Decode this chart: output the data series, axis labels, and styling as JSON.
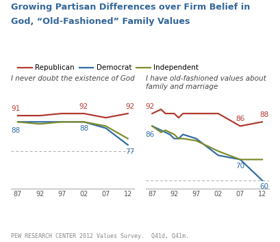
{
  "title_line1": "Growing Partisan Differences over Firm Belief in",
  "title_line2": "God, “Old-Fashioned” Family Values",
  "title_color": "#336699",
  "subtitle_left": "I never doubt the existence of God",
  "subtitle_right": "I have old-fashioned values about\nfamily and marriage",
  "x_labels": [
    "87",
    "92",
    "97",
    "02",
    "07",
    "12"
  ],
  "x_left": [
    0,
    1,
    2,
    3,
    4,
    5
  ],
  "x_right": [
    0,
    0.4,
    0.6,
    0.8,
    1,
    1.2,
    1.4,
    2,
    3,
    4,
    5
  ],
  "left_republican": [
    91,
    91,
    92,
    92,
    90,
    92
  ],
  "left_democrat": [
    88,
    88,
    88,
    88,
    85,
    77
  ],
  "left_independent": [
    88,
    87,
    88,
    88,
    86,
    80
  ],
  "right_republican": [
    92,
    94,
    92,
    92,
    92,
    90,
    92,
    92,
    92,
    86,
    88
  ],
  "right_democrat": [
    86,
    84,
    83,
    82,
    80,
    80,
    82,
    80,
    72,
    70,
    60
  ],
  "right_independent": [
    86,
    83,
    84,
    83,
    82,
    80,
    80,
    79,
    74,
    70,
    70
  ],
  "rep_color": "#b03a2e",
  "dem_color": "#2e6da4",
  "ind_color": "#7d8c2e",
  "footnote": "PEW RESEARCH CENTER 2012 Values Survey.  Q41d, Q41m."
}
